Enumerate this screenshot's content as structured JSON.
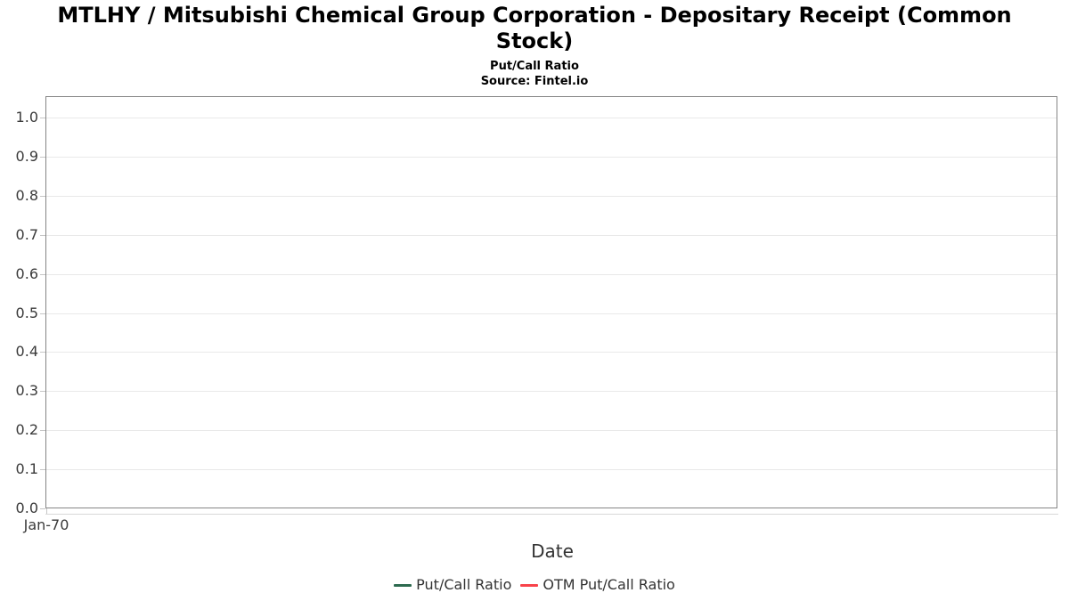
{
  "chart_data": {
    "type": "line",
    "title": "MTLHY / Mitsubishi Chemical Group Corporation - Depositary Receipt (Common Stock)",
    "subtitle": "Put/Call Ratio",
    "source": "Source: Fintel.io",
    "xlabel": "Date",
    "ylabel": "",
    "y_ticks": [
      "0.0",
      "0.1",
      "0.2",
      "0.3",
      "0.4",
      "0.5",
      "0.6",
      "0.7",
      "0.8",
      "0.9",
      "1.0"
    ],
    "ylim": [
      0.0,
      1.055
    ],
    "x_tick_labels": [
      "Jan-70"
    ],
    "grid": "horizontal",
    "legend_position": "bottom-center",
    "series": [
      {
        "name": "Put/Call Ratio",
        "color": "#2d6a4f",
        "x": [],
        "values": []
      },
      {
        "name": "OTM Put/Call Ratio",
        "color": "#f8434a",
        "x": [],
        "values": []
      }
    ]
  },
  "colors": {
    "plot_border": "#868686",
    "gridline": "#e9e9e9",
    "tick": "#c6c6c6",
    "tick_text": "#3a3a3a",
    "axis_title_text": "#333333",
    "legend_text": "#333333",
    "background": "#ffffff"
  }
}
